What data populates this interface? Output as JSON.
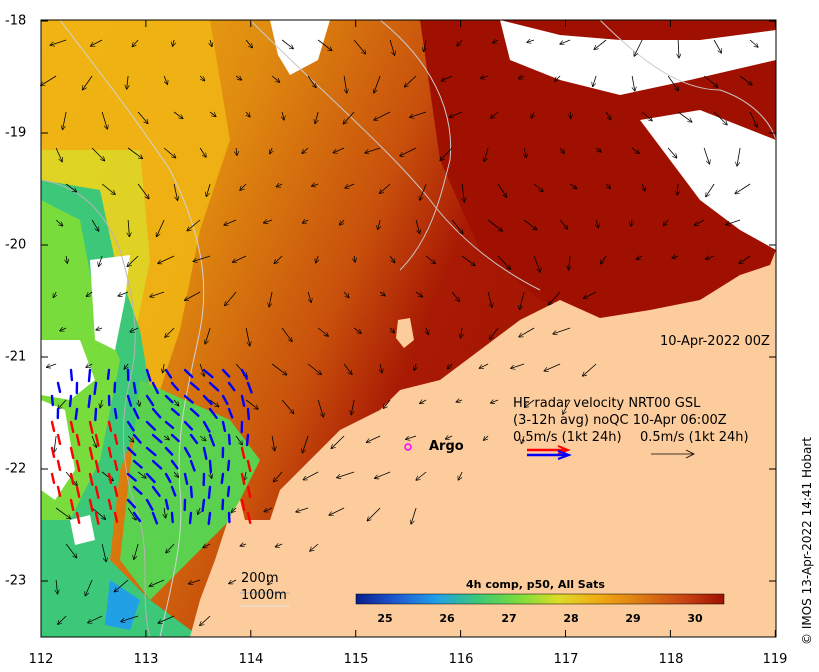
{
  "map": {
    "colorbar": {
      "title": "4h comp, p50, All Sats",
      "ticks": [
        "25",
        "26",
        "27",
        "28",
        "29",
        "30"
      ],
      "colors": [
        "#0a1e8c",
        "#1e5ad2",
        "#21a0e6",
        "#3cc878",
        "#78dc3c",
        "#dcdc28",
        "#f0aa14",
        "#dc7814",
        "#c84614",
        "#a01000"
      ]
    },
    "axes": {
      "x_ticks": [
        "112",
        "113",
        "114",
        "115",
        "116",
        "117",
        "118",
        "119"
      ],
      "y_ticks": [
        "-18",
        "-19",
        "-20",
        "-21",
        "-22",
        "-23"
      ]
    },
    "date_label": "10-Apr-2022 00Z",
    "legend": {
      "line1": "HF radar velocity  NRT00 GSL",
      "line2": "(3-12h avg) noQC 10-Apr 06:00Z",
      "line3a": "0.5m/s (1kt 24h)",
      "line3b": "0.5m/s (1kt 24h)"
    },
    "argo_label": "Argo",
    "depth_labels": [
      "200m",
      "1000m"
    ],
    "credit": "© IMOS 13-Apr-2022 14:41 Hobart",
    "colors": {
      "land": "#fccc9c",
      "hot": "#a01000",
      "radar_red": "#ff0000",
      "radar_blue": "#0000ff",
      "argo_marker": "#ff00ff"
    }
  }
}
